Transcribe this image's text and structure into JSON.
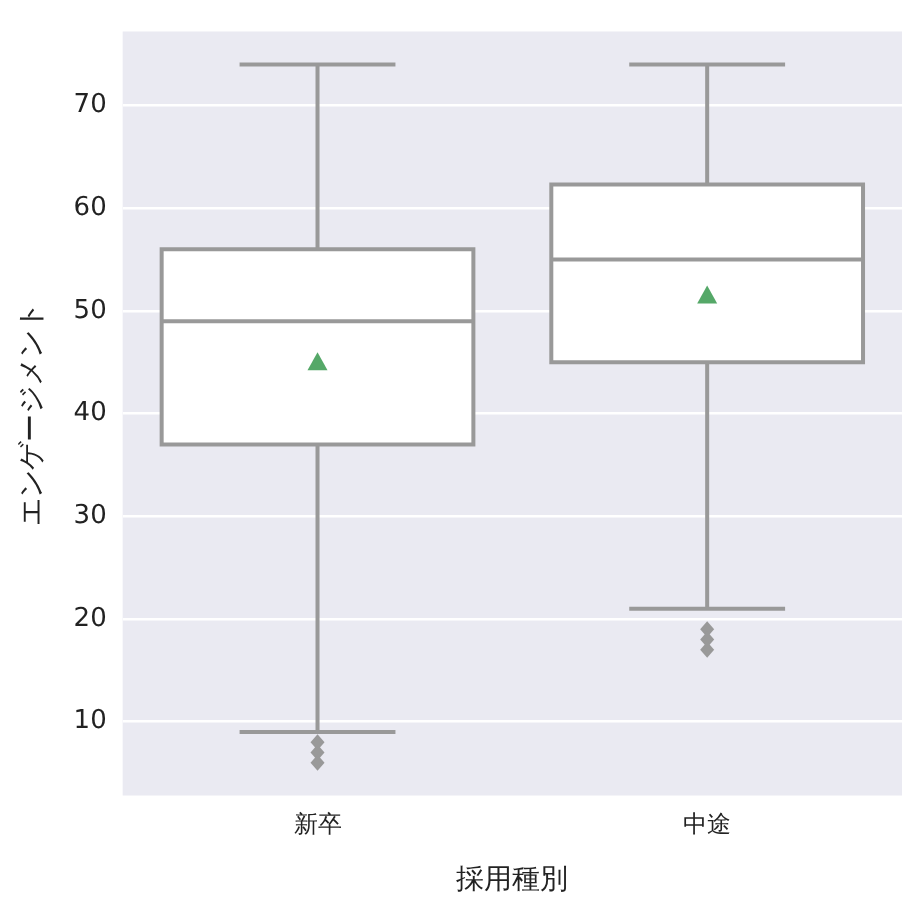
{
  "chart_data": {
    "type": "box",
    "xlabel": "採用種別",
    "ylabel": "エンゲージメント",
    "categories": [
      "新卒",
      "中途"
    ],
    "boxes": [
      {
        "low": 9,
        "q1": 37,
        "median": 49,
        "q3": 56,
        "high": 74,
        "mean": 45,
        "outliers": [
          8,
          7,
          6
        ]
      },
      {
        "low": 21,
        "q1": 45,
        "median": 55,
        "q3": 62.3,
        "high": 74,
        "mean": 51.5,
        "outliers": [
          19,
          18,
          17
        ]
      }
    ],
    "color": "#999999",
    "ylim": [
      2.8,
      77.2
    ],
    "yticks": [
      10,
      20,
      30,
      40,
      50,
      60,
      70
    ],
    "grid": "y",
    "legend": false
  }
}
